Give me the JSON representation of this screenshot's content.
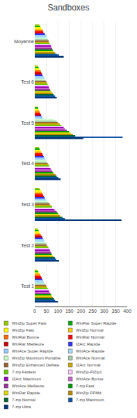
{
  "chart_data": {
    "type": "bar",
    "orientation": "horizontal",
    "title": "Sandboxes",
    "categories": [
      "Moyenne",
      "Test 6",
      "Test 5",
      "Test 4",
      "Test 3",
      "Test 2",
      "Test 1"
    ],
    "series": [
      {
        "name": "WinZip Super Fast",
        "color": "#99CC00",
        "values": [
          20,
          14,
          12,
          18,
          20,
          14,
          12
        ]
      },
      {
        "name": "WinRar Super Rapide",
        "color": "#00AA00",
        "values": [
          24,
          17,
          15,
          21,
          24,
          17,
          15
        ]
      },
      {
        "name": "WinZip Fast",
        "color": "#FFFF00",
        "values": [
          28,
          20,
          17,
          24,
          27,
          20,
          18
        ]
      },
      {
        "name": "WinZip Normal",
        "color": "#FFCC00",
        "values": [
          32,
          23,
          19,
          27,
          30,
          23,
          21
        ]
      },
      {
        "name": "WinRar Bonne",
        "color": "#FF6600",
        "values": [
          35,
          26,
          22,
          30,
          33,
          26,
          24
        ]
      },
      {
        "name": "WinRar Normal",
        "color": "#FF0000",
        "values": [
          37,
          28,
          24,
          33,
          36,
          29,
          27
        ]
      },
      {
        "name": "WinRar Meilleure",
        "color": "#CC0000",
        "values": [
          40,
          31,
          27,
          36,
          40,
          32,
          30
        ]
      },
      {
        "name": "IZArc Rapide",
        "color": "#3333FF",
        "values": [
          45,
          34,
          30,
          39,
          43,
          35,
          33
        ]
      },
      {
        "name": "WinAce Super Rapide",
        "color": "#99CCFF",
        "values": [
          50,
          38,
          33,
          43,
          47,
          39,
          36
        ]
      },
      {
        "name": "WinAce Rapide",
        "color": "#AADDFF",
        "values": [
          52,
          42,
          38,
          46,
          50,
          42,
          39
        ]
      },
      {
        "name": "WinZip Maximum Portable",
        "color": "#CCFFCC",
        "values": [
          55,
          44,
          85,
          49,
          55,
          46,
          42
        ]
      },
      {
        "name": "WinAce Normal",
        "color": "#AACCAA",
        "values": [
          58,
          47,
          95,
          53,
          60,
          49,
          46
        ]
      },
      {
        "name": "WinZip Enhanced Deflate",
        "color": "#996633",
        "values": [
          60,
          50,
          100,
          56,
          65,
          52,
          49
        ]
      },
      {
        "name": "IZArc Normal",
        "color": "#CCAA00",
        "values": [
          62,
          53,
          108,
          59,
          70,
          56,
          52
        ]
      },
      {
        "name": "7-zip Fastest",
        "color": "#66CC00",
        "values": [
          65,
          56,
          115,
          62,
          75,
          59,
          56
        ]
      },
      {
        "name": "WinZip-PiZip1",
        "color": "#FFCCFF",
        "values": [
          68,
          58,
          120,
          65,
          80,
          62,
          59
        ]
      },
      {
        "name": "IZArc Maximum",
        "color": "#9900BB",
        "values": [
          70,
          61,
          125,
          68,
          85,
          65,
          62
        ]
      },
      {
        "name": "WinAce Bonne",
        "color": "#CC66CC",
        "values": [
          73,
          63,
          130,
          72,
          90,
          68,
          65
        ]
      },
      {
        "name": "WinAce Meilleure",
        "color": "#993399",
        "values": [
          75,
          66,
          138,
          76,
          95,
          71,
          68
        ]
      },
      {
        "name": "7-zip Fast",
        "color": "#009900",
        "values": [
          78,
          69,
          148,
          80,
          100,
          74,
          71
        ]
      },
      {
        "name": "WinRar Rapide",
        "color": "#DDDD00",
        "values": [
          82,
          73,
          155,
          85,
          105,
          77,
          74
        ]
      },
      {
        "name": "WinZip PPMd",
        "color": "#BB8800",
        "values": [
          88,
          77,
          165,
          90,
          110,
          82,
          78
        ]
      },
      {
        "name": "7-zip Normal",
        "color": "#006633",
        "values": [
          95,
          82,
          175,
          95,
          120,
          87,
          83
        ]
      },
      {
        "name": "7-zip Maximum",
        "color": "#1155AA",
        "values": [
          105,
          88,
          380,
          102,
          130,
          92,
          88
        ]
      },
      {
        "name": "7-zip Ultra",
        "color": "#003377",
        "values": [
          125,
          95,
          210,
          112,
          375,
          105,
          100
        ]
      }
    ],
    "xlim": [
      0,
      400
    ],
    "xticks": [
      0,
      50,
      100,
      150,
      200,
      250,
      300,
      350,
      400
    ],
    "grid": true,
    "legend": "bottom"
  }
}
